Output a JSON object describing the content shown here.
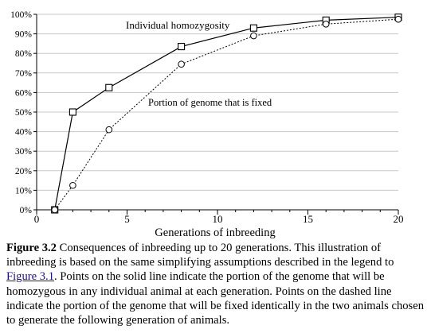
{
  "chart_data": {
    "type": "line",
    "xlabel": "Generations of inbreeding",
    "ylabel": "",
    "xlim": [
      0,
      20
    ],
    "ylim": [
      0,
      100
    ],
    "x_ticks": [
      0,
      5,
      10,
      15,
      20
    ],
    "x_tick_labels": [
      "0",
      "5",
      "10",
      "15",
      "20"
    ],
    "y_ticks": [
      0,
      10,
      20,
      30,
      40,
      50,
      60,
      70,
      80,
      90,
      100
    ],
    "y_tick_labels": [
      "0%",
      "10%",
      "20%",
      "30%",
      "40%",
      "50%",
      "60%",
      "70%",
      "80%",
      "90%",
      "100%"
    ],
    "grid": true,
    "series": [
      {
        "name": "Individual homozygosity",
        "style": "solid",
        "marker": "square",
        "color": "#000000",
        "x": [
          1,
          2,
          4,
          8,
          12,
          16,
          20
        ],
        "y": [
          0,
          50,
          62.5,
          83.5,
          93,
          97,
          98.5
        ]
      },
      {
        "name": "Portion of genome that is fixed",
        "style": "dotted",
        "marker": "circle",
        "color": "#000000",
        "x": [
          1,
          2,
          4,
          8,
          12,
          16,
          20
        ],
        "y": [
          0,
          12.5,
          41,
          74.5,
          89,
          95,
          97.5
        ]
      }
    ]
  },
  "caption": {
    "label": "Figure 3.2",
    "text_before_link": " Consequences of inbreeding up to 20 generations. This illustration of inbreeding is based on the same simplifying assumptions described in the legend to ",
    "link_text": "Figure 3.1",
    "text_after_link": ". Points on the solid line indicate the portion of the genome that will be homozygous in any individual animal at each generation. Points on the dashed line indicate the portion of the genome that will be fixed identically in the two animals chosen to generate the following generation of animals."
  }
}
